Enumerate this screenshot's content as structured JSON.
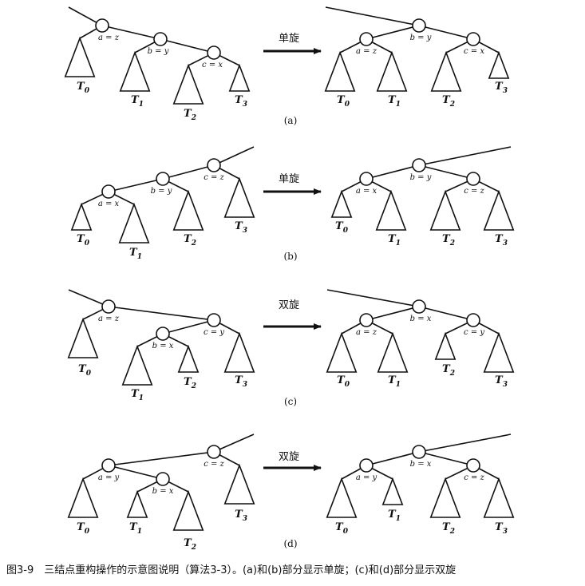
{
  "panels": [
    {
      "tag": "(a)",
      "op": "单旋",
      "before": {
        "a": "a = z",
        "b": "b = y",
        "c": "c = x",
        "t0": "T",
        "t0s": "0",
        "t1": "T",
        "t1s": "1",
        "t2": "T",
        "t2s": "2",
        "t3": "T",
        "t3s": "3"
      },
      "after": {
        "a": "a = z",
        "b": "b = y",
        "c": "c = x",
        "t0": "T",
        "t0s": "0",
        "t1": "T",
        "t1s": "1",
        "t2": "T",
        "t2s": "2",
        "t3": "T",
        "t3s": "3"
      }
    },
    {
      "tag": "(b)",
      "op": "单旋",
      "before": {
        "a": "a = x",
        "b": "b = y",
        "c": "c = z",
        "t0": "T",
        "t0s": "0",
        "t1": "T",
        "t1s": "1",
        "t2": "T",
        "t2s": "2",
        "t3": "T",
        "t3s": "3"
      },
      "after": {
        "a": "a = x",
        "b": "b = y",
        "c": "c = z",
        "t0": "T",
        "t0s": "0",
        "t1": "T",
        "t1s": "1",
        "t2": "T",
        "t2s": "2",
        "t3": "T",
        "t3s": "3"
      }
    },
    {
      "tag": "(c)",
      "op": "双旋",
      "before": {
        "a": "a = z",
        "b": "b = x",
        "c": "c = y",
        "t0": "T",
        "t0s": "0",
        "t1": "T",
        "t1s": "1",
        "t2": "T",
        "t2s": "2",
        "t3": "T",
        "t3s": "3"
      },
      "after": {
        "a": "a = z",
        "b": "b = x",
        "c": "c = y",
        "t0": "T",
        "t0s": "0",
        "t1": "T",
        "t1s": "1",
        "t2": "T",
        "t2s": "2",
        "t3": "T",
        "t3s": "3"
      }
    },
    {
      "tag": "(d)",
      "op": "双旋",
      "before": {
        "a": "a = y",
        "b": "b = x",
        "c": "c = z",
        "t0": "T",
        "t0s": "0",
        "t1": "T",
        "t1s": "1",
        "t2": "T",
        "t2s": "2",
        "t3": "T",
        "t3s": "3"
      },
      "after": {
        "a": "a = y",
        "b": "b = x",
        "c": "c = z",
        "t0": "T",
        "t0s": "0",
        "t1": "T",
        "t1s": "1",
        "t2": "T",
        "t2s": "2",
        "t3": "T",
        "t3s": "3"
      }
    }
  ],
  "caption": "图3-9　三结点重构操作的示意图说明（算法3-3）。(a)和(b)部分显示单旋；(c)和(d)部分显示双旋"
}
